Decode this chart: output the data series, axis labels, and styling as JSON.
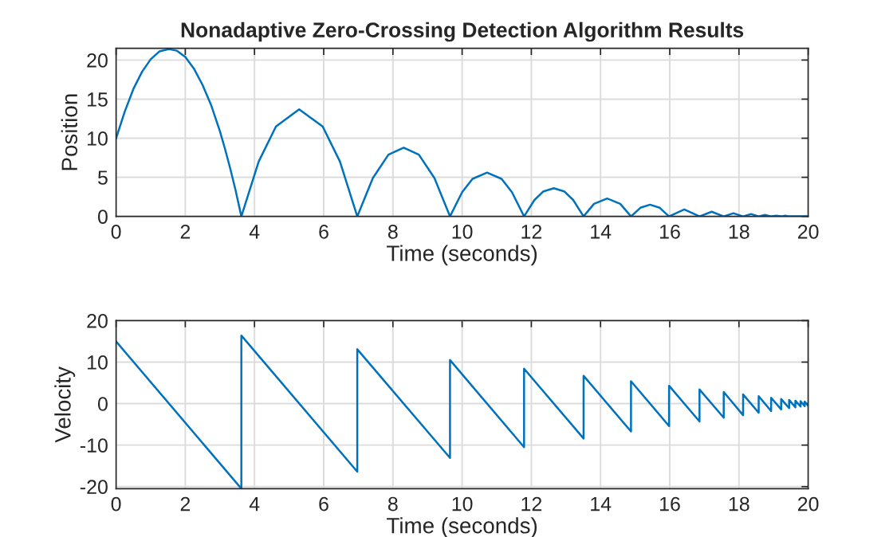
{
  "chart_data": [
    {
      "type": "line",
      "title": "Nonadaptive Zero-Crossing Detection Algorithm Results",
      "xlabel": "Time (seconds)",
      "ylabel": "Position",
      "xlim": [
        0,
        20
      ],
      "xticks": [
        0,
        2,
        4,
        6,
        8,
        10,
        12,
        14,
        16,
        18,
        20
      ],
      "ylim": [
        0,
        21.5
      ],
      "yticks": [
        0,
        5,
        10,
        15,
        20
      ],
      "grid": true,
      "series": [
        {
          "color": "#0072bd",
          "x": [
            0,
            0.25,
            0.5,
            0.75,
            1.0,
            1.25,
            1.53,
            1.75,
            2.0,
            2.25,
            2.5,
            2.75,
            3.0,
            3.15,
            3.3,
            3.45,
            3.62,
            4.12,
            4.62,
            5.29,
            5.97,
            6.47,
            6.97,
            7.42,
            7.87,
            8.31,
            8.75,
            9.2,
            9.65,
            10.0,
            10.3,
            10.72,
            11.14,
            11.44,
            11.79,
            12.09,
            12.35,
            12.65,
            12.95,
            13.21,
            13.51,
            13.81,
            14.19,
            14.57,
            14.88,
            15.15,
            15.43,
            15.71,
            15.98,
            16.42,
            16.86,
            17.21,
            17.56,
            17.84,
            18.12,
            18.35,
            18.57,
            18.75,
            18.93,
            19.08,
            19.22,
            19.34,
            19.45,
            20
          ],
          "values": [
            10,
            13.4,
            16.3,
            18.5,
            20.1,
            21.1,
            21.4,
            21.2,
            20.4,
            18.9,
            16.8,
            14.2,
            10.9,
            8.6,
            6.1,
            3.4,
            0,
            7.0,
            11.5,
            13.7,
            11.5,
            7.0,
            0,
            4.9,
            7.9,
            8.8,
            7.9,
            4.9,
            0,
            3.1,
            4.8,
            5.6,
            4.8,
            3.1,
            0,
            2.1,
            3.2,
            3.6,
            3.2,
            2.1,
            0,
            1.6,
            2.3,
            1.6,
            0,
            1.1,
            1.5,
            1.1,
            0,
            0.9,
            0,
            0.6,
            0,
            0.4,
            0,
            0.3,
            0,
            0.2,
            0,
            0.1,
            0,
            0.1,
            0,
            0
          ]
        }
      ]
    },
    {
      "type": "line",
      "xlabel": "Time (seconds)",
      "ylabel": "Velocity",
      "xlim": [
        0,
        20
      ],
      "xticks": [
        0,
        2,
        4,
        6,
        8,
        10,
        12,
        14,
        16,
        18,
        20
      ],
      "ylim": [
        -20.5,
        20
      ],
      "yticks": [
        -20,
        -10,
        0,
        10,
        20
      ],
      "grid": true,
      "series": [
        {
          "color": "#0072bd",
          "x": [
            0,
            3.62,
            3.62,
            6.97,
            6.97,
            9.65,
            9.65,
            11.79,
            11.79,
            13.51,
            13.51,
            14.88,
            14.88,
            15.98,
            15.98,
            16.86,
            16.86,
            17.56,
            17.56,
            18.12,
            18.12,
            18.57,
            18.57,
            18.93,
            18.93,
            19.22,
            19.22,
            19.45,
            19.45,
            19.63,
            19.63,
            19.78,
            19.78,
            19.9,
            19.9,
            20
          ],
          "values": [
            15,
            -20.5,
            16.4,
            -16.4,
            13.1,
            -13.1,
            10.5,
            -10.5,
            8.4,
            -8.4,
            6.7,
            -6.7,
            5.4,
            -5.4,
            4.3,
            -4.3,
            3.4,
            -3.4,
            2.8,
            -2.8,
            2.2,
            -2.2,
            1.8,
            -1.8,
            1.4,
            -1.4,
            1.1,
            -1.1,
            0.9,
            -0.9,
            0.7,
            -0.7,
            0.6,
            -0.6,
            0.5,
            -0.5
          ]
        }
      ]
    }
  ]
}
